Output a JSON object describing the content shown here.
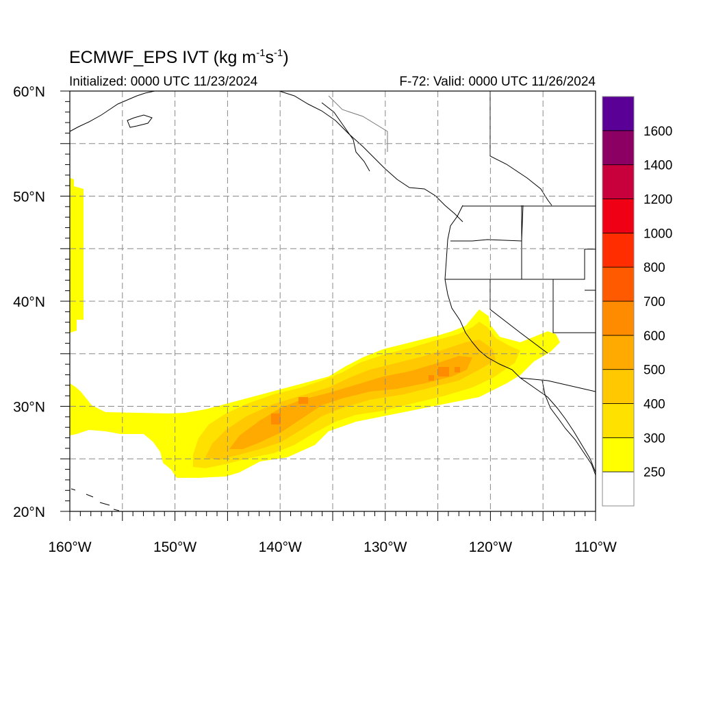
{
  "header": {
    "title_main": "ECMWF_EPS IVT (kg m",
    "title_exp1": "-1",
    "title_mid": "s",
    "title_exp2": "-1",
    "title_end": ")",
    "initialized": "Initialized: 0000 UTC 11/23/2024",
    "valid": "F-72: Valid: 0000 UTC 11/26/2024"
  },
  "map": {
    "lon_range": [
      -160,
      -110
    ],
    "lat_range": [
      20,
      60
    ],
    "lat_labels": [
      {
        "lat": 60,
        "text": "60°N"
      },
      {
        "lat": 50,
        "text": "50°N"
      },
      {
        "lat": 40,
        "text": "40°N"
      },
      {
        "lat": 30,
        "text": "30°N"
      },
      {
        "lat": 20,
        "text": "20°N"
      }
    ],
    "lon_labels": [
      {
        "lon": -160,
        "text": "160°W"
      },
      {
        "lon": -150,
        "text": "150°W"
      },
      {
        "lon": -140,
        "text": "140°W"
      },
      {
        "lon": -130,
        "text": "130°W"
      },
      {
        "lon": -120,
        "text": "120°W"
      },
      {
        "lon": -110,
        "text": "110°W"
      }
    ],
    "gridline_lats": [
      25,
      30,
      35,
      40,
      45,
      50,
      55
    ],
    "gridline_lons": [
      -155,
      -150,
      -145,
      -140,
      -135,
      -130,
      -125,
      -120,
      -115
    ],
    "grid_style": "dashed"
  },
  "colorbar": {
    "levels": [
      "250",
      "300",
      "400",
      "500",
      "600",
      "700",
      "800",
      "1000",
      "1200",
      "1400",
      "1600"
    ],
    "colors": [
      "#ffffff",
      "#ffff00",
      "#ffe100",
      "#ffc800",
      "#ffaa00",
      "#ff8c00",
      "#ff5a00",
      "#ff2d00",
      "#f00014",
      "#c8003c",
      "#8c0064",
      "#5a0096"
    ]
  }
}
